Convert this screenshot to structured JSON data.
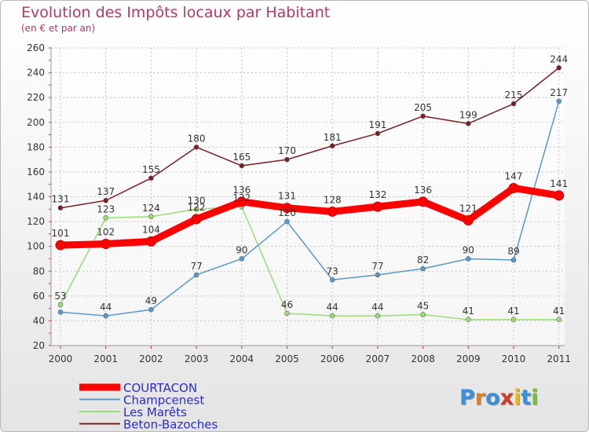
{
  "chart_data": {
    "type": "line",
    "title": "Evolution des Impôts locaux par Habitant",
    "subtitle": "(en € et par an)",
    "xlabel": "",
    "ylabel": "",
    "x": [
      "2000",
      "2001",
      "2002",
      "2003",
      "2004",
      "2005",
      "2006",
      "2007",
      "2008",
      "2009",
      "2010",
      "2011"
    ],
    "ylim": [
      20,
      260
    ],
    "yticks": [
      "20",
      "40",
      "60",
      "80",
      "100",
      "120",
      "140",
      "160",
      "180",
      "200",
      "220",
      "240",
      "260"
    ],
    "grid": true,
    "legend_position": "bottom-left",
    "series": [
      {
        "name": "COURTACON",
        "color": "#ff0000",
        "values": [
          101,
          102,
          104,
          122,
          136,
          131,
          128,
          132,
          136,
          121,
          147,
          141
        ],
        "labels": [
          "101",
          "102",
          "104",
          "122",
          "136",
          "131",
          "128",
          "132",
          "136",
          "121",
          "147",
          "141"
        ]
      },
      {
        "name": "Champcenest",
        "color": "#5b97c7",
        "values": [
          47,
          44,
          49,
          77,
          90,
          120,
          73,
          77,
          82,
          90,
          89,
          217
        ],
        "labels": [
          "",
          "44",
          "49",
          "77",
          "90",
          "120",
          "73",
          "77",
          "82",
          "90",
          "89",
          "217"
        ]
      },
      {
        "name": "Les Marêts",
        "color": "#99dd77",
        "values": [
          53,
          123,
          124,
          130,
          132,
          46,
          44,
          44,
          45,
          41,
          41,
          41
        ],
        "labels": [
          "53",
          "123",
          "124",
          "130",
          "132",
          "46",
          "44",
          "44",
          "45",
          "41",
          "41",
          "41"
        ]
      },
      {
        "name": "Beton-Bazoches",
        "color": "#7a1e24",
        "values": [
          131,
          137,
          155,
          180,
          165,
          170,
          181,
          191,
          205,
          199,
          215,
          244
        ],
        "labels": [
          "131",
          "137",
          "155",
          "180",
          "165",
          "170",
          "181",
          "191",
          "205",
          "199",
          "215",
          "244"
        ]
      }
    ]
  },
  "logo": {
    "letters": [
      "P",
      "r",
      "o",
      "x",
      "i",
      "t",
      "i"
    ],
    "colors": [
      "#3b8fd4",
      "#e87c1e",
      "#3b8fd4",
      "#d23a2a",
      "#e8b51e",
      "#3b8fd4",
      "#7cbf3a"
    ]
  }
}
